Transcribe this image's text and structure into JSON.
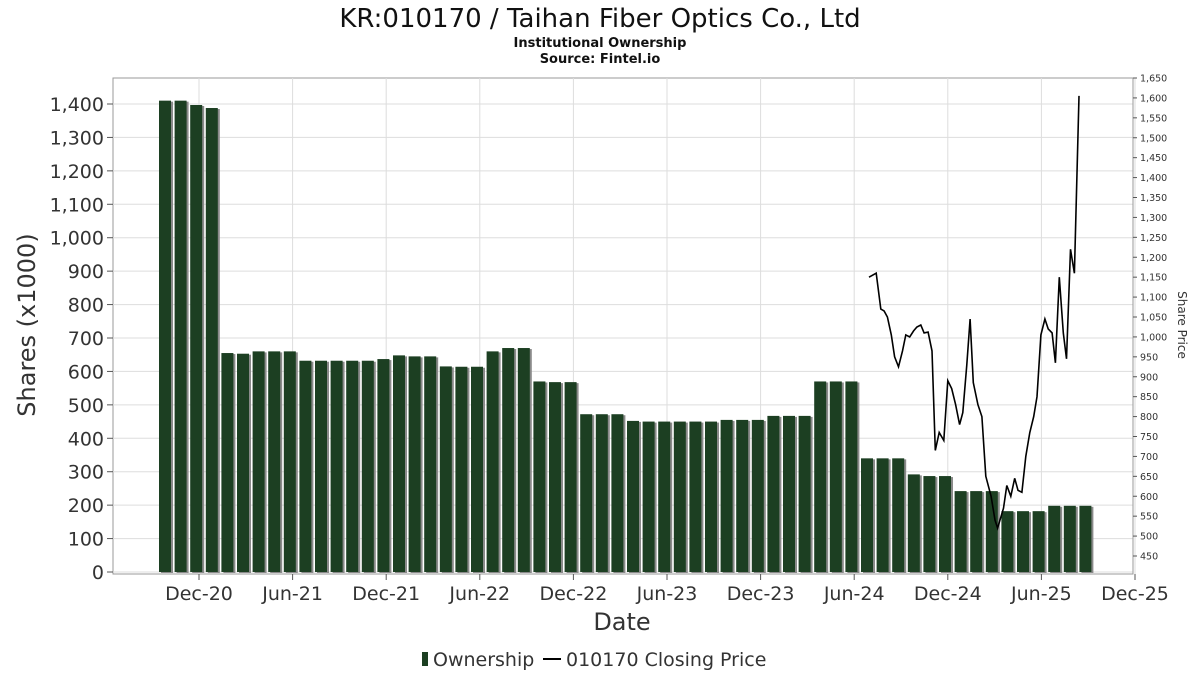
{
  "chart_data": {
    "type": "bar",
    "title": "KR:010170 / Taihan Fiber Optics Co., Ltd",
    "subtitle": "Institutional Ownership",
    "source": "Source: Fintel.io",
    "xlabel": "Date",
    "ylabel": "Shares (x1000)",
    "y2label": "Share Price",
    "ylim": [
      0,
      1420
    ],
    "y2lim": [
      420,
      1650
    ],
    "yticks": [
      "0",
      "100",
      "200",
      "300",
      "400",
      "500",
      "600",
      "700",
      "800",
      "900",
      "1,000",
      "1,100",
      "1,200",
      "1,300",
      "1,400"
    ],
    "y2ticks": [
      "450",
      "500",
      "550",
      "600",
      "650",
      "700",
      "750",
      "800",
      "850",
      "900",
      "950",
      "1,000",
      "1,050",
      "1,100",
      "1,150",
      "1,200",
      "1,250",
      "1,300",
      "1,350",
      "1,400",
      "1,450",
      "1,500",
      "1,550",
      "1,600",
      "1,650"
    ],
    "xticks": [
      "Dec-20",
      "Jun-21",
      "Dec-21",
      "Jun-22",
      "Dec-22",
      "Jun-23",
      "Dec-23",
      "Jun-24",
      "Dec-24",
      "Jun-25",
      "Dec-25"
    ],
    "grid": true,
    "legend_position": "bottom",
    "series": [
      {
        "name": "Ownership",
        "type": "bar",
        "color": "#1c3f22",
        "values": [
          1410,
          1410,
          1397,
          1388,
          655,
          653,
          660,
          660,
          660,
          632,
          632,
          632,
          632,
          632,
          637,
          648,
          645,
          645,
          615,
          614,
          614,
          660,
          670,
          670,
          570,
          568,
          568,
          472,
          472,
          472,
          452,
          450,
          450,
          450,
          450,
          450,
          455,
          455,
          455,
          467,
          467,
          467,
          570,
          570,
          570,
          340,
          340,
          340,
          292,
          287,
          287,
          242,
          242,
          242,
          182,
          182,
          182,
          198,
          198,
          198
        ]
      },
      {
        "name": "010170 Closing Price",
        "type": "line",
        "color": "#000000",
        "points": [
          [
            1150,
            1150
          ],
          [
            1161,
            1160
          ],
          [
            1168,
            1070
          ],
          [
            1173,
            1065
          ],
          [
            1178,
            1050
          ],
          [
            1184,
            1005
          ],
          [
            1189,
            950
          ],
          [
            1195,
            925
          ],
          [
            1201,
            965
          ],
          [
            1206,
            1005
          ],
          [
            1212,
            1000
          ],
          [
            1218,
            1015
          ],
          [
            1223,
            1025
          ],
          [
            1229,
            1030
          ],
          [
            1234,
            1010
          ],
          [
            1240,
            1012
          ],
          [
            1246,
            965
          ],
          [
            1251,
            715
          ],
          [
            1257,
            760
          ],
          [
            1264,
            740
          ],
          [
            1270,
            890
          ],
          [
            1276,
            870
          ],
          [
            1282,
            830
          ],
          [
            1288,
            780
          ],
          [
            1293,
            810
          ],
          [
            1299,
            930
          ],
          [
            1304,
            1045
          ],
          [
            1309,
            885
          ],
          [
            1316,
            830
          ],
          [
            1322,
            800
          ],
          [
            1328,
            650
          ],
          [
            1336,
            600
          ],
          [
            1342,
            540
          ],
          [
            1346,
            520
          ],
          [
            1355,
            570
          ],
          [
            1360,
            627
          ],
          [
            1366,
            600
          ],
          [
            1372,
            645
          ],
          [
            1377,
            615
          ],
          [
            1383,
            610
          ],
          [
            1389,
            700
          ],
          [
            1395,
            760
          ],
          [
            1401,
            800
          ],
          [
            1406,
            850
          ],
          [
            1412,
            1005
          ],
          [
            1418,
            1045
          ],
          [
            1423,
            1020
          ],
          [
            1429,
            1010
          ],
          [
            1434,
            935
          ],
          [
            1440,
            1150
          ],
          [
            1446,
            1010
          ],
          [
            1451,
            945
          ],
          [
            1457,
            1220
          ],
          [
            1463,
            1160
          ],
          [
            1470,
            1605
          ]
        ]
      }
    ]
  }
}
